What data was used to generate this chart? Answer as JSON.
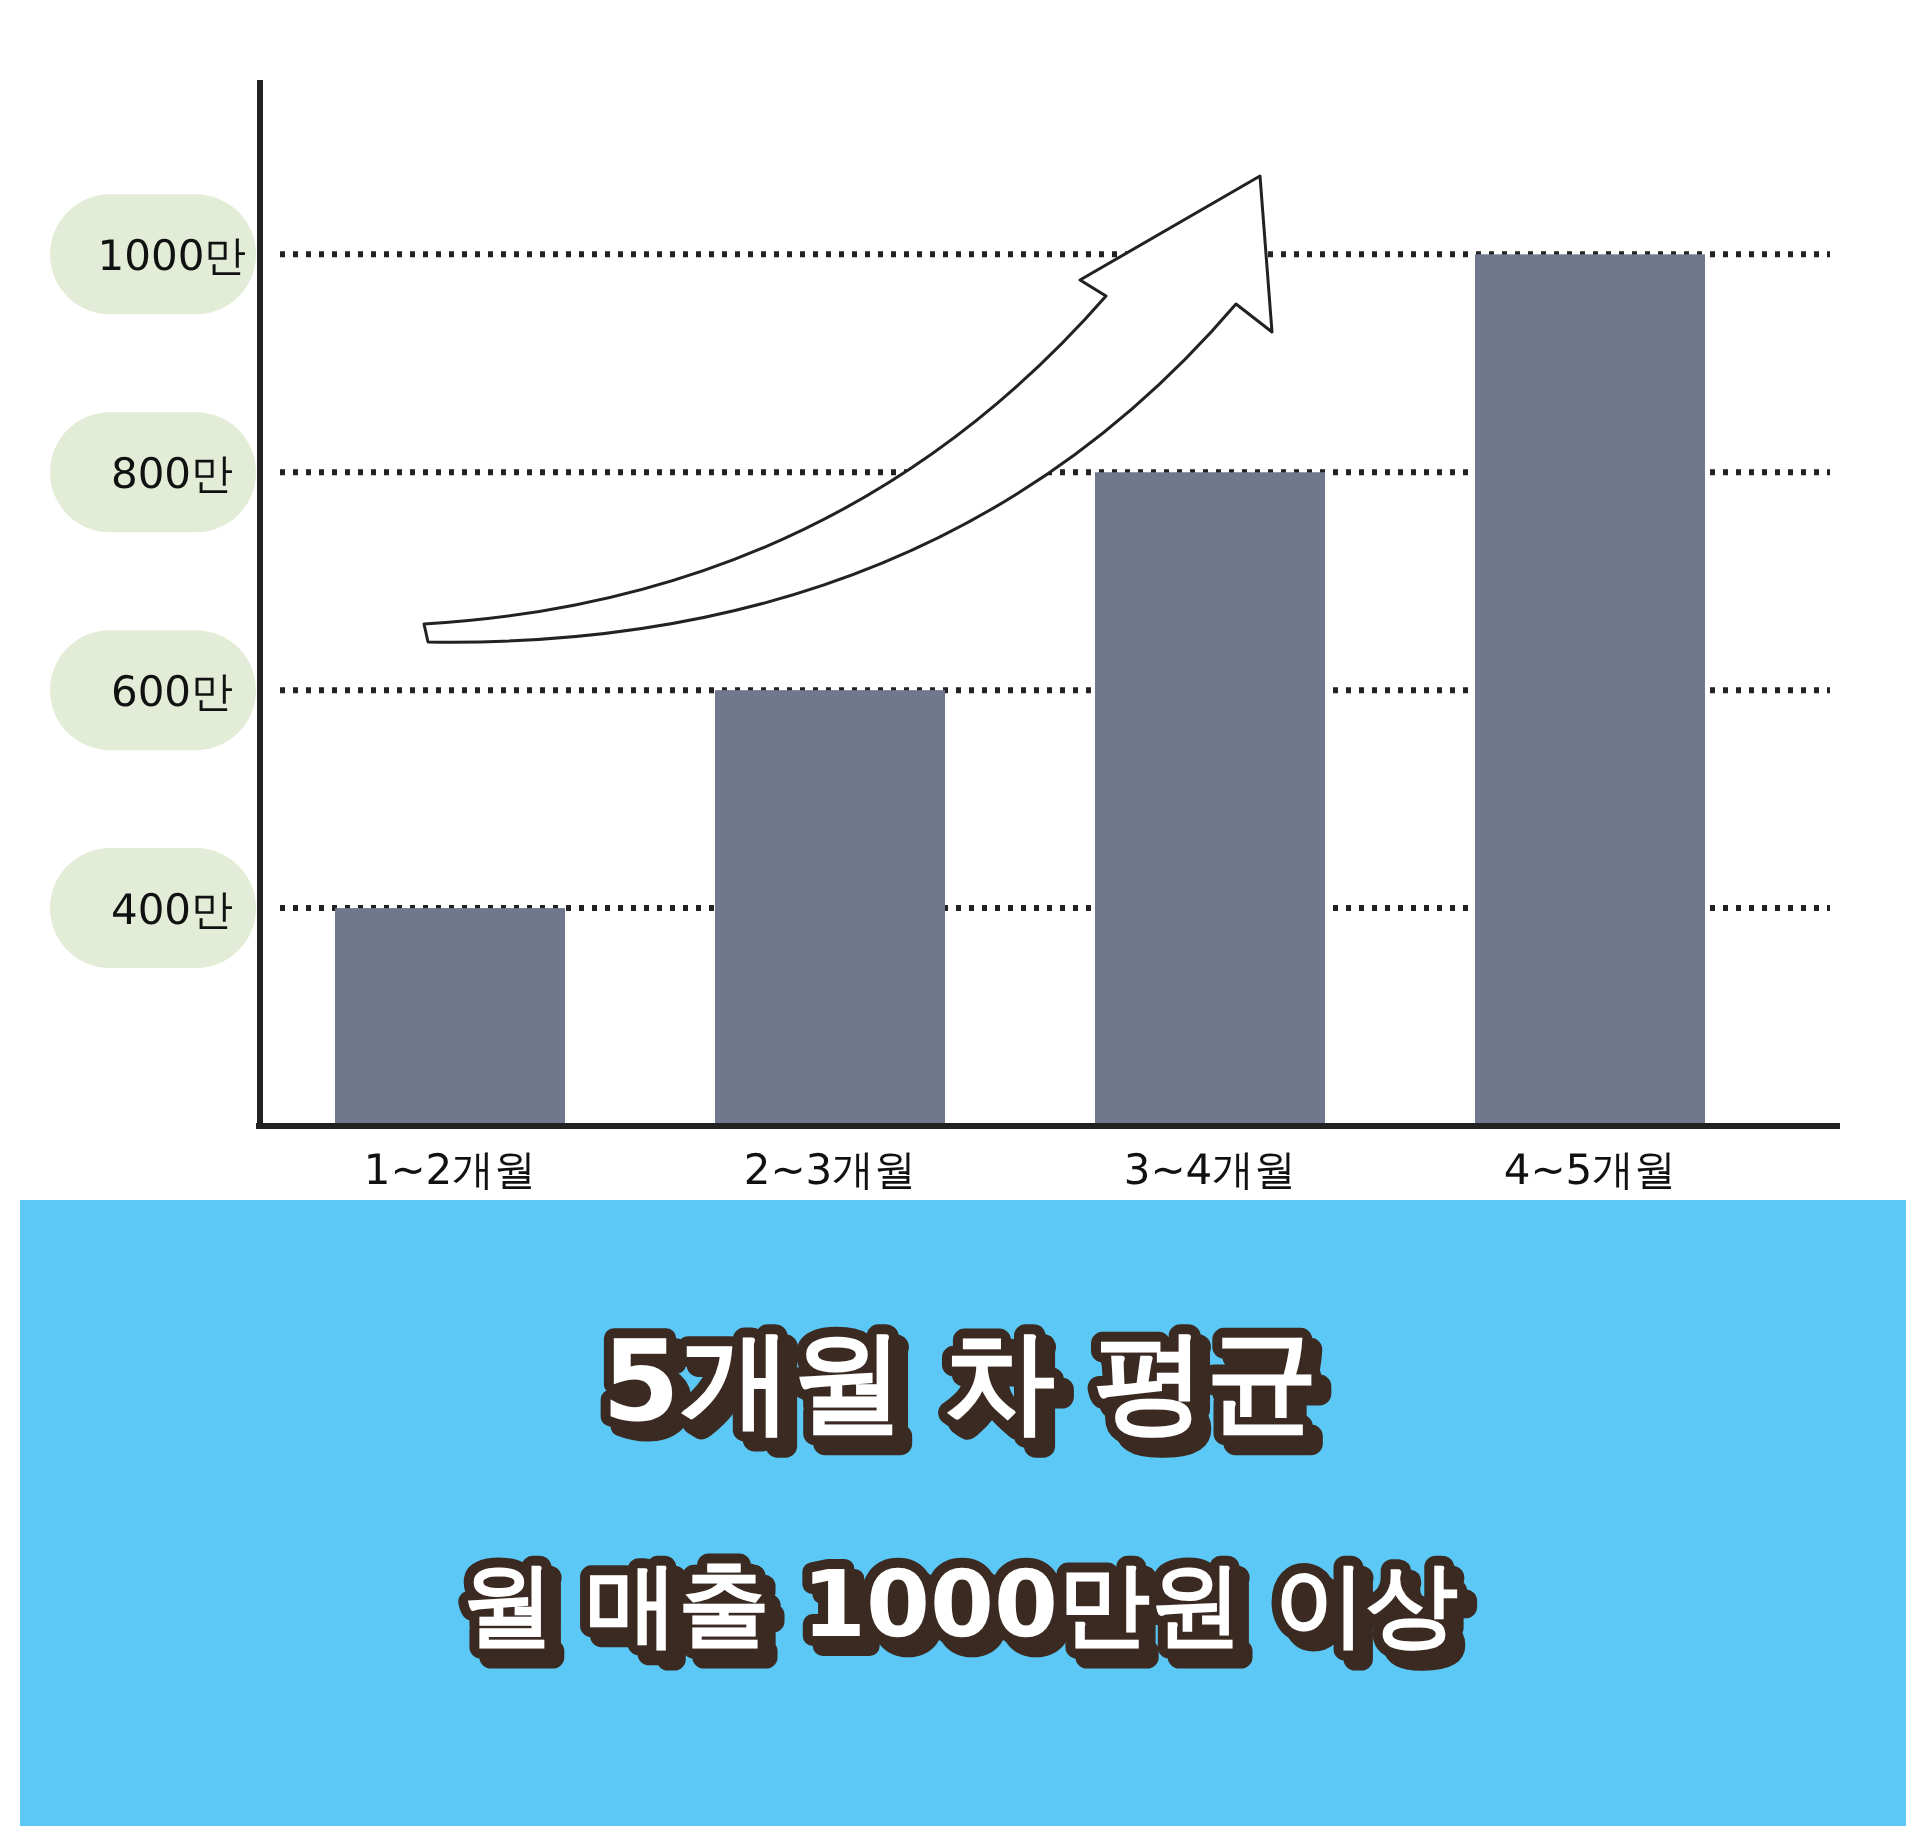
{
  "chart_data": {
    "type": "bar",
    "title": "5개월 차 평균",
    "subtitle": "월 매출 1000만원 이상",
    "categories": [
      "1~2개월",
      "2~3개월",
      "3~4개월",
      "4~5개월"
    ],
    "values": [
      400,
      600,
      800,
      1000
    ],
    "color": "#6f788c",
    "ylim": [
      200,
      1160
    ],
    "yticks": [
      {
        "value": 400,
        "label": "400만"
      },
      {
        "value": 600,
        "label": "600만"
      },
      {
        "value": 800,
        "label": "800만"
      },
      {
        "value": 1000,
        "label": "1000만"
      }
    ],
    "grid": "y"
  }
}
